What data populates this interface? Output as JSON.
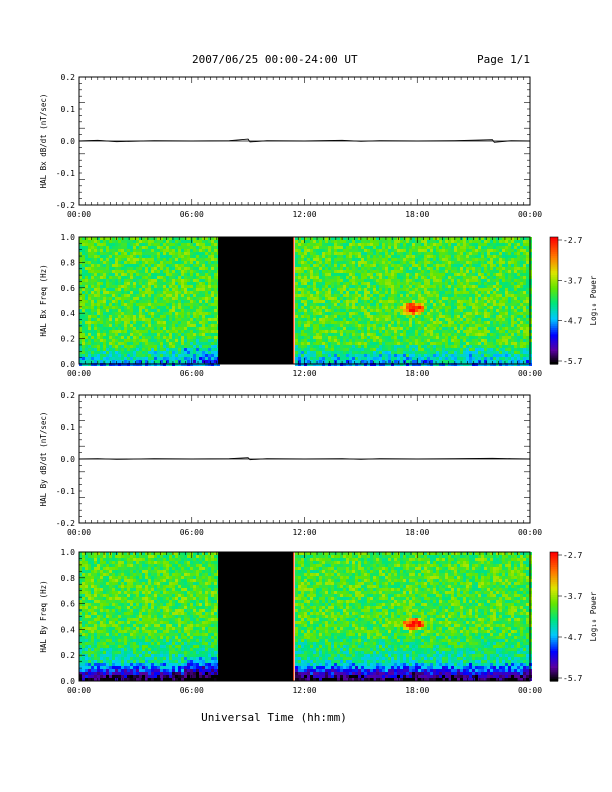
{
  "header": {
    "title": "2007/06/25  00:00-24:00 UT",
    "page": "Page 1/1"
  },
  "footer": {
    "xlabel": "Universal Time (hh:mm)"
  },
  "chart_data": [
    {
      "type": "line",
      "ylabel": "HAL Bx dB/dt (nT/sec)",
      "ylim": [
        -0.2,
        0.2
      ],
      "yticks": [
        "0.2",
        "0.1",
        "0.0",
        "-0.1",
        "-0.2"
      ],
      "xticks": [
        "00:00",
        "06:00",
        "12:00",
        "18:00",
        "00:00"
      ],
      "series": [
        {
          "x_hours": [
            0,
            1,
            2,
            4,
            6,
            8,
            9,
            9.1,
            10,
            12,
            14,
            15,
            16,
            18,
            20,
            22,
            22.1,
            23,
            24
          ],
          "values": [
            0,
            0.002,
            -0.002,
            0.001,
            0,
            0.001,
            0.006,
            -0.003,
            0.001,
            0,
            0.002,
            -0.001,
            0.001,
            0,
            0.001,
            0.004,
            -0.004,
            0.001,
            0
          ]
        }
      ]
    },
    {
      "type": "heatmap",
      "ylabel": "HAL Bx Freq (Hz)",
      "ylim": [
        0,
        1.0
      ],
      "yticks": [
        "1.0",
        "0.8",
        "0.6",
        "0.4",
        "0.2",
        "0.0"
      ],
      "xticks": [
        "00:00",
        "06:00",
        "12:00",
        "18:00",
        "00:00"
      ],
      "data_gap_hours": [
        7.4,
        11.4
      ],
      "colorbar": {
        "label": "Log₁₀ Power",
        "ticks": [
          "-2.7",
          "-3.7",
          "-4.7",
          "-5.7"
        ]
      }
    },
    {
      "type": "line",
      "ylabel": "HAL By dB/dt (nT/sec)",
      "ylim": [
        -0.2,
        0.2
      ],
      "yticks": [
        "0.2",
        "0.1",
        "0.0",
        "-0.1",
        "-0.2"
      ],
      "xticks": [
        "00:00",
        "06:00",
        "12:00",
        "18:00",
        "00:00"
      ],
      "series": [
        {
          "x_hours": [
            0,
            1,
            2,
            4,
            6,
            8,
            9,
            9.1,
            10,
            12,
            14,
            15,
            16,
            18,
            20,
            22,
            23,
            24
          ],
          "values": [
            0,
            0.001,
            -0.001,
            0.001,
            0,
            0.001,
            0.004,
            -0.002,
            0.001,
            0,
            0.001,
            -0.001,
            0.001,
            0,
            0.001,
            0.002,
            0.001,
            0
          ]
        }
      ]
    },
    {
      "type": "heatmap",
      "ylabel": "HAL By Freq (Hz)",
      "ylim": [
        0,
        1.0
      ],
      "yticks": [
        "1.0",
        "0.8",
        "0.6",
        "0.4",
        "0.2",
        "0.0"
      ],
      "xticks": [
        "00:00",
        "06:00",
        "12:00",
        "18:00",
        "00:00"
      ],
      "data_gap_hours": [
        7.4,
        11.4
      ],
      "colorbar": {
        "label": "Log₁₀ Power",
        "ticks": [
          "-2.7",
          "-3.7",
          "-4.7",
          "-5.7"
        ]
      }
    }
  ]
}
